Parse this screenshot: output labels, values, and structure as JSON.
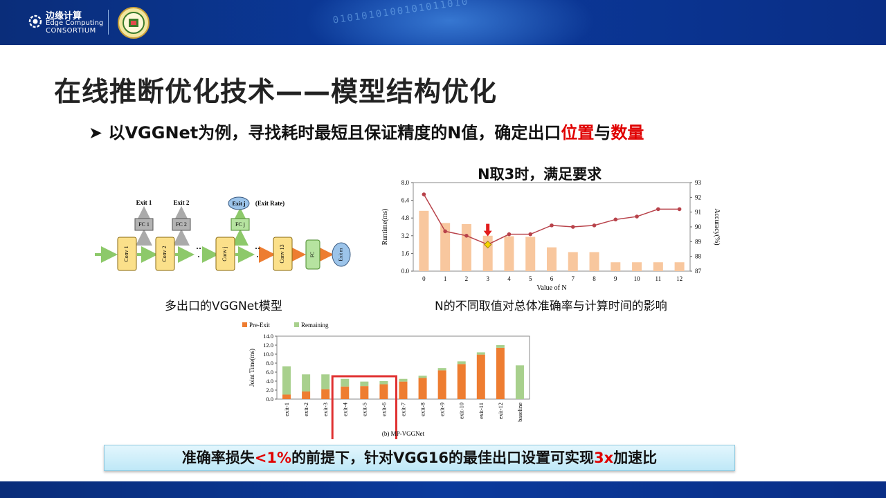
{
  "header": {
    "logo_cn": "边缘计算",
    "logo_en1": "Edge Computing",
    "logo_en2": "CONSORTIUM",
    "seal_icon": "university-seal-icon",
    "digits_text": "0101010100101011010"
  },
  "title": "在线推断优化技术——模型结构优化",
  "bullet": {
    "marker": "➤",
    "text_prefix": "以VGGNet为例，寻找耗时最短且保证精度的N值，确定出口",
    "highlight1": "位置",
    "connector": "与",
    "highlight2": "数量"
  },
  "diagram": {
    "nodes": [
      "Conv 1",
      "Conv 2",
      "Conv j",
      "Conv 13",
      "FC",
      "Exit m"
    ],
    "fc_nodes": [
      "FC 1",
      "FC 2",
      "FC j"
    ],
    "exit_labels": [
      "Exit 1",
      "Exit 2",
      "Exit j",
      "(Exit Rate)"
    ],
    "dots": "· ·\n·",
    "caption": "多出口的VGGNet模型"
  },
  "chart_top": {
    "title": "N取3时，满足要求",
    "caption": "N的不同取值对总体准确率与计算时间的影响",
    "chart_data": {
      "type": "bar+line",
      "x": [
        0,
        1,
        2,
        3,
        4,
        5,
        6,
        7,
        8,
        9,
        10,
        11,
        12
      ],
      "xlabel": "Value of N",
      "ylabel_left": "Runtime(ms)",
      "ylabel_right": "Accuracy(%)",
      "ylim_left": [
        0,
        8.0
      ],
      "yticks_left": [
        "0.0",
        "1.6",
        "3.2",
        "4.8",
        "6.4",
        "8.0"
      ],
      "ylim_right": [
        87,
        93
      ],
      "yticks_right": [
        "87",
        "88",
        "89",
        "90",
        "91",
        "92",
        "93"
      ],
      "runtime": [
        5.45,
        4.35,
        4.25,
        3.2,
        3.15,
        3.1,
        2.15,
        1.72,
        1.72,
        0.8,
        0.8,
        0.8,
        0.8
      ],
      "accuracy": [
        92.2,
        89.7,
        89.4,
        88.8,
        89.5,
        89.5,
        90.1,
        90.0,
        90.1,
        90.5,
        90.7,
        91.2,
        91.2
      ],
      "highlight_index": 3,
      "bar_color": "#f8c79e",
      "line_color": "#b8424a",
      "marker_color": "#f5d400",
      "arrow_color": "#e21b1b"
    }
  },
  "chart_bottom": {
    "chart_data": {
      "type": "stacked-bar",
      "categories": [
        "exit-1",
        "exit-2",
        "exit-3",
        "exit-4",
        "exit-5",
        "exit-6",
        "exit-7",
        "exit-8",
        "exit-9",
        "exit-10",
        "exit-11",
        "exit-12",
        "baseline"
      ],
      "series": [
        {
          "name": "Pre-Exit",
          "values": [
            1.0,
            1.7,
            2.2,
            2.8,
            2.9,
            3.3,
            3.9,
            4.7,
            6.4,
            7.8,
            9.9,
            11.4,
            0
          ]
        },
        {
          "name": "Remaining",
          "values": [
            6.3,
            3.8,
            3.3,
            1.7,
            1.0,
            0.7,
            0.6,
            0.5,
            0.5,
            0.6,
            0.5,
            0.6,
            7.5
          ]
        }
      ],
      "ylabel": "Joint Time(ms)",
      "ylim": [
        0,
        14.0
      ],
      "yticks": [
        "0.0",
        "2.0",
        "4.0",
        "6.0",
        "8.0",
        "10.0",
        "12.0",
        "14.0"
      ],
      "caption": "(b) MP-VGGNet",
      "highlight_range": [
        3,
        5
      ],
      "colors": {
        "Pre-Exit": "#ee7d31",
        "Remaining": "#a8d08d",
        "highlight": "#e03030"
      },
      "legend_position": "top-left"
    }
  },
  "conclusion": {
    "prefix": "准确率损失",
    "v1": "<1%",
    "middle": "的前提下，针对VGG16的最佳出口设置可实现",
    "v2": "3x",
    "suffix": "加速比"
  }
}
